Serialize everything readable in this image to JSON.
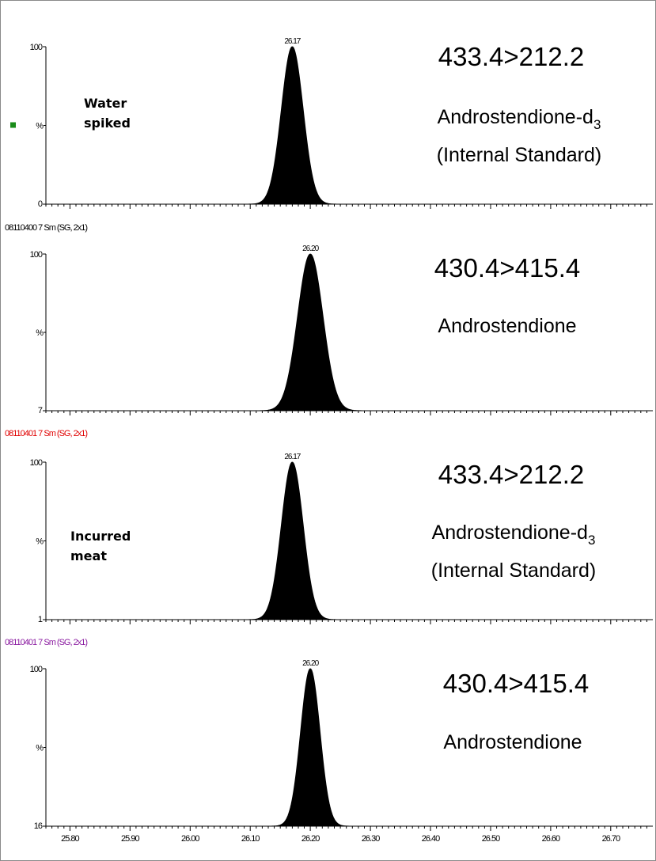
{
  "chart_data": [
    {
      "type": "line",
      "sample_label": [
        "Water",
        "spiked"
      ],
      "y_ticks": [
        "100",
        "%",
        "0"
      ],
      "ylim": [
        0,
        100
      ],
      "peak": {
        "rt": 26.17,
        "label": "26.17",
        "height": 100,
        "sigma": 0.018
      },
      "transition": "433.4>212.2",
      "compound_lines": [
        "Androstendione-d",
        "(Internal Standard)"
      ],
      "compound_subscript": "3",
      "sample_id_below": "08110400 7 Sm (SG, 2x1)"
    },
    {
      "type": "line",
      "sample_label": [],
      "y_ticks": [
        "100",
        "%",
        "7"
      ],
      "ylim": [
        7,
        100
      ],
      "peak": {
        "rt": 26.2,
        "label": "26.20",
        "height": 100,
        "sigma": 0.021
      },
      "transition": "430.4>415.4",
      "compound_lines": [
        "Androstendione"
      ],
      "compound_subscript": "",
      "sample_id_below": "08110401 7 Sm (SG, 2x1)"
    },
    {
      "type": "line",
      "sample_label": [
        "Incurred",
        "meat"
      ],
      "y_ticks": [
        "100",
        "%",
        "1"
      ],
      "ylim": [
        1,
        100
      ],
      "peak": {
        "rt": 26.17,
        "label": "26.17",
        "height": 100,
        "sigma": 0.018
      },
      "transition": "433.4>212.2",
      "compound_lines": [
        "Androstendione-d",
        "(Internal Standard)"
      ],
      "compound_subscript": "3",
      "sample_id_below": "08110401 7 Sm (SG, 2x1)"
    },
    {
      "type": "line",
      "sample_label": [],
      "y_ticks": [
        "100",
        "%",
        "16"
      ],
      "ylim": [
        16,
        100
      ],
      "peak": {
        "rt": 26.2,
        "label": "26.20",
        "height": 100,
        "sigma": 0.016
      },
      "transition": "430.4>415.4",
      "compound_lines": [
        "Androstendione"
      ],
      "compound_subscript": "",
      "sample_id_below": ""
    }
  ],
  "x_axis": {
    "xlim": [
      25.76,
      26.77
    ],
    "ticks": [
      25.8,
      25.9,
      26.0,
      26.1,
      26.2,
      26.3,
      26.4,
      26.5,
      26.6,
      26.7
    ],
    "tick_labels": [
      "25.80",
      "25.90",
      "26.00",
      "26.10",
      "26.20",
      "26.30",
      "26.40",
      "26.50",
      "26.60",
      "26.70"
    ]
  },
  "colors": {
    "trace": "#000000",
    "indicator": "#1a8c1a",
    "sample_id": [
      "#000000",
      "#e00000",
      "#8a1aa0"
    ]
  }
}
